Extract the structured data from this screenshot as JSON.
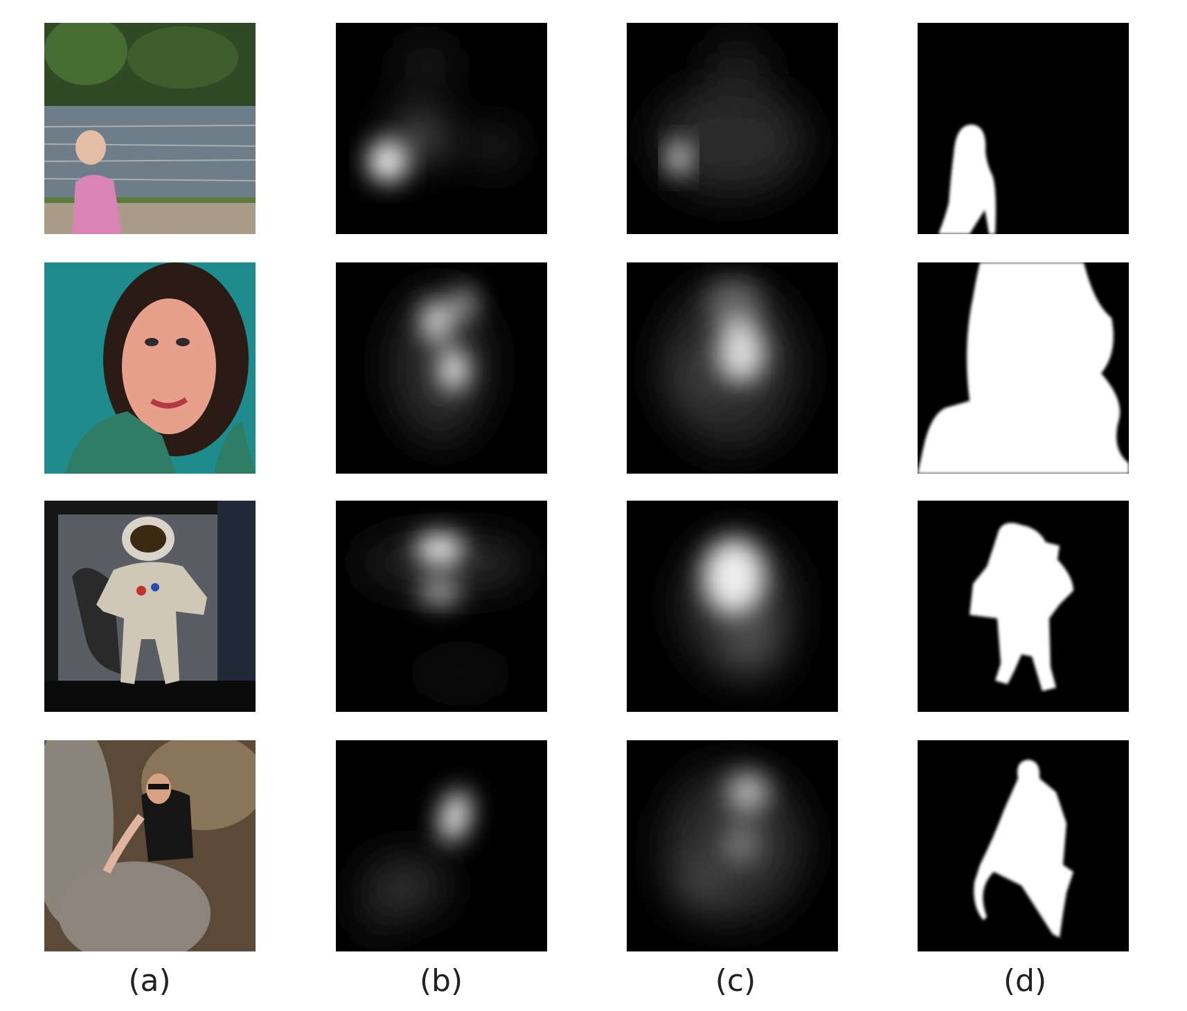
{
  "figure": {
    "columns": [
      {
        "label": "(a)"
      },
      {
        "label": "(b)"
      },
      {
        "label": "(c)"
      },
      {
        "label": "(d)"
      }
    ]
  }
}
